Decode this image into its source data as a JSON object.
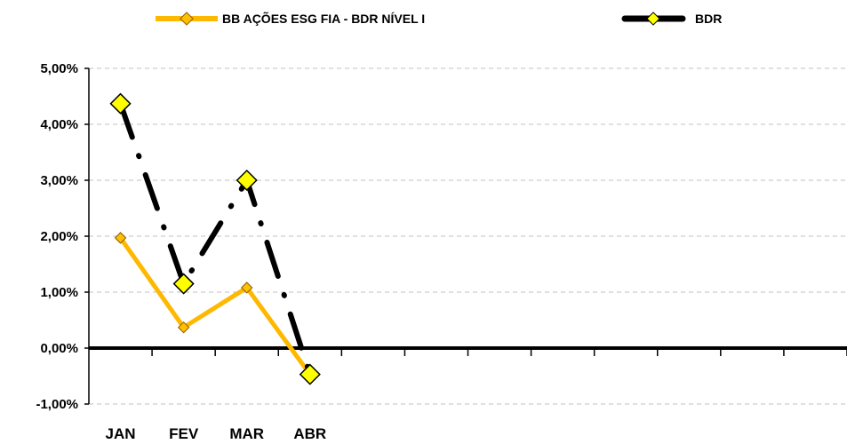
{
  "chart_data": {
    "type": "line",
    "categories": [
      "JAN",
      "FEV",
      "MAR",
      "ABR"
    ],
    "x_slots": 12,
    "series": [
      {
        "name": "BB AÇÕES ESG FIA - BDR NÍVEL I",
        "values": [
          1.97,
          0.37,
          1.08,
          -0.47
        ],
        "color": "#FFB800",
        "marker_color": "#FFC000",
        "line_style": "solid"
      },
      {
        "name": "BDR",
        "values": [
          4.37,
          1.15,
          3.0,
          -0.47
        ],
        "color": "#000000",
        "marker_color": "#FFFF00",
        "line_style": "dash-dot"
      }
    ],
    "y_ticks": [
      "-1,00%",
      "0,00%",
      "1,00%",
      "2,00%",
      "3,00%",
      "4,00%",
      "5,00%"
    ],
    "ylim": [
      -1,
      5
    ],
    "grid": true,
    "legend_position": "top"
  }
}
